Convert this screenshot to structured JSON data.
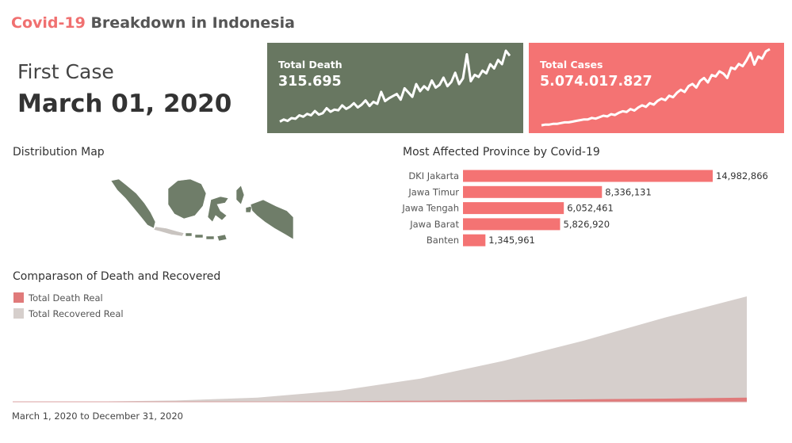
{
  "header": {
    "title_highlight": "Covid-19",
    "title_rest": "Breakdown in Indonesia",
    "first_case_label": "First Case",
    "first_case_date": "March 01, 2020"
  },
  "colors": {
    "accent": "#f47373",
    "death_panel": "#687761",
    "death_series": "#e07a7a",
    "recovered_series": "#d6cfcc",
    "map_fill": "#6f7d69",
    "map_fill_highlight": "#c9c4c0"
  },
  "kpis": {
    "death": {
      "label": "Total Death",
      "value": "315.695"
    },
    "cases": {
      "label": "Total Cases",
      "value": "5.074.017.827"
    }
  },
  "sections": {
    "map_title": "Distribution Map",
    "bar_title": "Most Affected Province by Covid-19",
    "area_title": "Comparason of Death and Recovered",
    "date_range": "March 1, 2020 to December 31, 2020"
  },
  "chart_data": [
    {
      "type": "bar",
      "orientation": "horizontal",
      "title": "Most Affected Province by Covid-19",
      "categories": [
        "DKI Jakarta",
        "Jawa Timur",
        "Jawa Tengah",
        "Jawa Barat",
        "Banten"
      ],
      "values": [
        14982866,
        8336131,
        6052461,
        5826920,
        1345961
      ],
      "value_labels": [
        "14,982,866",
        "8,336,131",
        "6,052,461",
        "5,826,920",
        "1,345,961"
      ],
      "grid": false
    },
    {
      "type": "area",
      "title": "Comparason of Death and Recovered",
      "legend_position": "top-left",
      "x": [
        "2020-03",
        "2020-04",
        "2020-05",
        "2020-06",
        "2020-07",
        "2020-08",
        "2020-09",
        "2020-10",
        "2020-11",
        "2020-12"
      ],
      "series": [
        {
          "name": "Total Death Real",
          "values": [
            0.0,
            0.0,
            0.1,
            0.3,
            0.6,
            1.0,
            1.5,
            2.3,
            3.0,
            3.9
          ]
        },
        {
          "name": "Total Recovered Real",
          "values": [
            0.0,
            0.2,
            1.2,
            4.0,
            10.5,
            22.0,
            38.5,
            58.0,
            80.0,
            100.0
          ]
        }
      ],
      "grid": false
    },
    {
      "type": "line",
      "title": "Total Death",
      "sparkline": true,
      "x": [
        1,
        2,
        3,
        4,
        5,
        6,
        7,
        8,
        9,
        10,
        11,
        12,
        13,
        14,
        15,
        16,
        17,
        18,
        19,
        20,
        21,
        22,
        23,
        24,
        25,
        26,
        27,
        28,
        29,
        30,
        31,
        32,
        33,
        34,
        35,
        36,
        37,
        38,
        39,
        40,
        41,
        42,
        43,
        44,
        45,
        46,
        47,
        48,
        49,
        50,
        51,
        52,
        53,
        54,
        55,
        56,
        57,
        58,
        59,
        60
      ],
      "values": [
        5,
        8,
        6,
        10,
        9,
        14,
        12,
        16,
        14,
        20,
        15,
        17,
        24,
        19,
        22,
        21,
        28,
        23,
        26,
        31,
        25,
        29,
        35,
        27,
        33,
        30,
        47,
        34,
        38,
        41,
        44,
        36,
        52,
        46,
        40,
        58,
        48,
        55,
        50,
        63,
        53,
        57,
        67,
        55,
        61,
        74,
        58,
        66,
        100,
        62,
        71,
        68,
        77,
        73,
        86,
        80,
        92,
        86,
        105,
        98
      ]
    },
    {
      "type": "line",
      "title": "Total Cases",
      "sparkline": true,
      "x": [
        1,
        2,
        3,
        4,
        5,
        6,
        7,
        8,
        9,
        10,
        11,
        12,
        13,
        14,
        15,
        16,
        17,
        18,
        19,
        20,
        21,
        22,
        23,
        24,
        25,
        26,
        27,
        28,
        29,
        30,
        31,
        32,
        33,
        34,
        35,
        36,
        37,
        38,
        39,
        40,
        41,
        42,
        43,
        44,
        45,
        46,
        47,
        48,
        49,
        50,
        51,
        52,
        53,
        54,
        55,
        56,
        57,
        58,
        59,
        60
      ],
      "values": [
        2,
        3,
        3,
        4,
        4,
        5,
        6,
        6,
        7,
        8,
        9,
        10,
        10,
        12,
        11,
        13,
        15,
        14,
        17,
        16,
        19,
        21,
        20,
        24,
        22,
        26,
        29,
        27,
        32,
        30,
        35,
        38,
        36,
        42,
        40,
        46,
        50,
        47,
        55,
        58,
        53,
        62,
        66,
        60,
        70,
        68,
        75,
        72,
        66,
        80,
        78,
        85,
        82,
        90,
        100,
        84,
        95,
        92,
        102,
        105
      ]
    }
  ]
}
